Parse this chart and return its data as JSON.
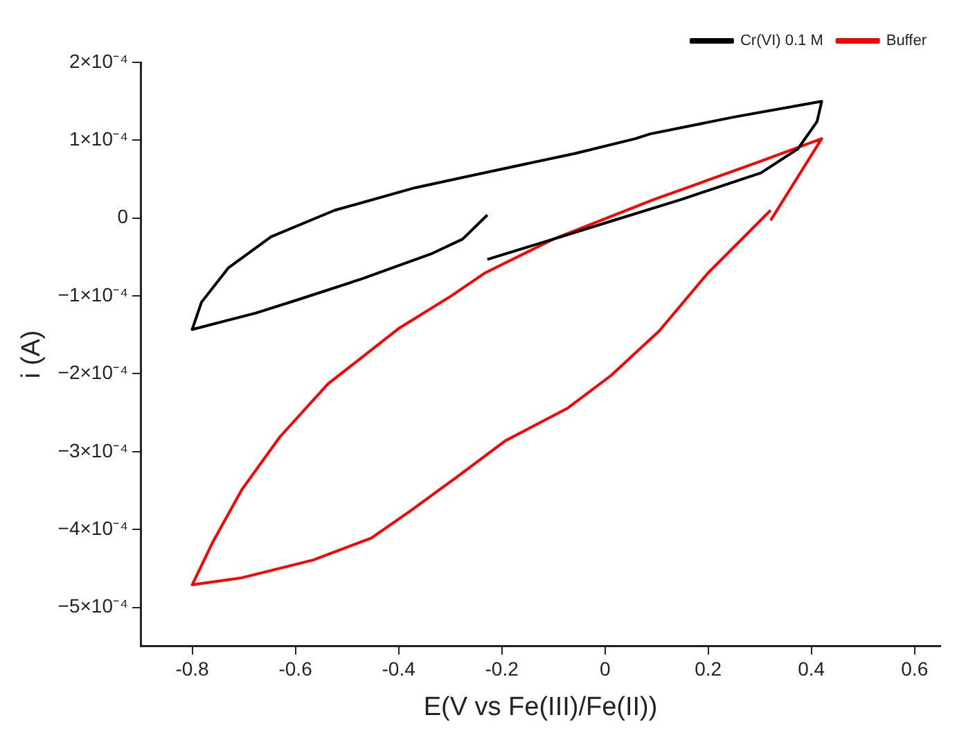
{
  "chart_data": {
    "type": "line",
    "xlabel": "E(V vs Fe(III)/Fe(II))",
    "ylabel": "i (A)",
    "xlim": [
      -0.9,
      0.65
    ],
    "xticks": [
      -0.8,
      -0.6,
      -0.4,
      -0.2,
      0.0,
      0.2,
      0.4,
      0.6
    ],
    "ylim": [
      -0.00055,
      0.0002
    ],
    "yticks": [
      {
        "value": -0.0005,
        "label": "−5×10⁻⁴"
      },
      {
        "value": -0.0004,
        "label": "−4×10⁻⁴"
      },
      {
        "value": -0.0003,
        "label": "−3×10⁻⁴"
      },
      {
        "value": -0.0002,
        "label": "−2×10⁻⁴"
      },
      {
        "value": -0.0001,
        "label": "−1×10⁻⁴"
      },
      {
        "value": 0,
        "label": "0"
      },
      {
        "value": 0.0001,
        "label": "1×10⁻⁴"
      },
      {
        "value": 0.0002,
        "label": "2×10⁻⁴"
      }
    ],
    "grid": false,
    "legend": "top right",
    "marker": "none",
    "line_style": "solid",
    "series": [
      {
        "name": "Cr(VI) 0.1 M",
        "color": "#000000",
        "x": [
          -0.228,
          -0.276,
          -0.337,
          -0.471,
          -0.596,
          -0.677,
          -0.8,
          -0.782,
          -0.73,
          -0.647,
          -0.524,
          -0.368,
          -0.214,
          -0.058,
          0.059,
          0.087,
          0.252,
          0.42,
          0.411,
          0.374,
          0.302,
          0.148,
          -0.008,
          -0.1,
          -0.228
        ],
        "values": [
          4e-06,
          -2.7e-05,
          -4.6e-05,
          -7.8e-05,
          -0.000105,
          -0.000122,
          -0.000143,
          -0.000108,
          -6.4e-05,
          -2.4e-05,
          1e-05,
          3.9e-05,
          6.1e-05,
          8.3e-05,
          0.000102,
          0.000108,
          0.00013,
          0.00015,
          0.000124,
          8.9e-05,
          5.8e-05,
          2.4e-05,
          -8e-06,
          -2.7e-05,
          -5.3e-05
        ]
      },
      {
        "name": "Buffer",
        "color": "#ff0000",
        "x": [
          0.321,
          0.42,
          0.302,
          0.095,
          -0.1,
          -0.234,
          -0.298,
          -0.398,
          -0.537,
          -0.63,
          -0.704,
          -0.76,
          -0.8,
          -0.704,
          -0.565,
          -0.453,
          -0.379,
          -0.286,
          -0.193,
          -0.072,
          0.012,
          0.105,
          0.199,
          0.321
        ],
        "values": [
          -3e-06,
          0.000102,
          7.3e-05,
          2.4e-05,
          -2.7e-05,
          -7.1e-05,
          -0.0001,
          -0.000141,
          -0.000213,
          -0.000281,
          -0.000349,
          -0.000416,
          -0.000471,
          -0.000462,
          -0.000439,
          -0.000411,
          -0.000377,
          -0.000332,
          -0.000286,
          -0.000244,
          -0.000202,
          -0.000145,
          -7.1e-05,
          1e-05
        ]
      }
    ]
  }
}
